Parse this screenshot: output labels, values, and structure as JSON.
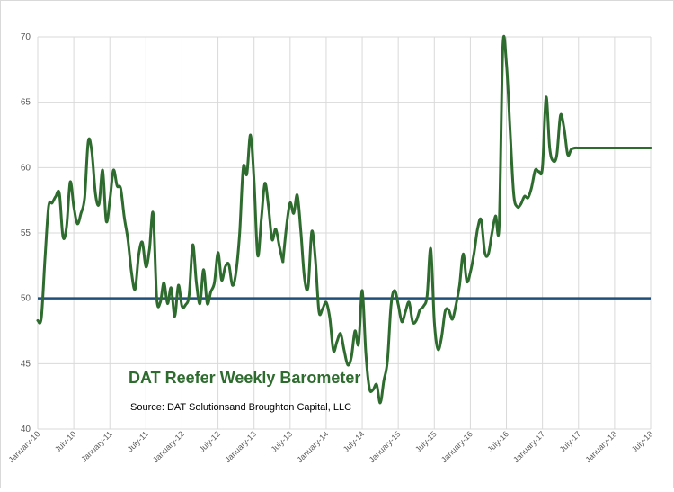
{
  "chart_data": {
    "type": "line",
    "title": "DAT Reefer Weekly Barometer",
    "subtitle": "Source: DAT Solutionsand Broughton Capital, LLC",
    "xlabel": "",
    "ylabel": "",
    "ylim": [
      40,
      70
    ],
    "yticks": [
      "40",
      "45",
      "50",
      "55",
      "60",
      "65",
      "70"
    ],
    "xticks": [
      "January-10",
      "July-10",
      "January-11",
      "July-11",
      "January-12",
      "July-12",
      "January-13",
      "July-13",
      "January-14",
      "July-14",
      "January-15",
      "July-15",
      "January-16",
      "July-16",
      "January-17",
      "July-17",
      "January-18",
      "July-18"
    ],
    "grid": true,
    "reference_line": {
      "value": 50,
      "color": "#1f4e79"
    },
    "series": [
      {
        "color": "#2e6b2e",
        "x": [
          0,
          0.25,
          0.5,
          0.75,
          1,
          1.25,
          1.5,
          1.75,
          2,
          2.25,
          2.5,
          2.75,
          3,
          3.25,
          3.5,
          3.75,
          4,
          4.25,
          4.5,
          4.75,
          5,
          5.25,
          5.5,
          5.75,
          6,
          6.25,
          6.5,
          6.75,
          7,
          7.25,
          7.5,
          7.75,
          8,
          8.25,
          8.5,
          8.75,
          9,
          9.25,
          9.5,
          9.75,
          10,
          10.25,
          10.5,
          10.75,
          11,
          11.25,
          11.5,
          11.75,
          12,
          12.25,
          12.5,
          12.75,
          13,
          13.25,
          13.5,
          13.75,
          14,
          14.25,
          14.5,
          14.75,
          15,
          15.25,
          15.5,
          15.75,
          16,
          16.25,
          16.5,
          16.75,
          17
        ],
        "values": [
          48.3,
          48.5,
          53.0,
          57.0,
          57.3,
          57.8,
          58.0,
          54.7,
          55.5,
          58.9,
          57.0,
          55.7,
          56.5,
          57.7,
          62.0,
          61.2,
          58.0,
          57.2,
          59.8,
          55.9,
          57.5,
          59.8,
          58.6,
          58.4,
          56.2,
          54.5,
          52.0,
          50.7,
          53.3,
          54.3,
          52.4,
          53.8,
          56.5,
          50.0,
          49.7,
          51.2,
          49.6,
          50.8,
          48.6,
          51.0,
          49.4,
          49.5,
          50.3,
          54.1,
          51.2,
          49.6,
          52.2,
          49.6,
          50.5,
          51.2,
          53.5,
          51.4,
          52.4,
          52.6,
          51.0,
          52.0,
          55.0,
          60.0,
          59.5,
          62.5,
          59.0,
          53.3,
          56.0,
          58.8,
          57.0,
          54.5,
          55.3,
          54.0,
          52.8
        ]
      },
      {
        "color": "#2e6b2e",
        "x": [
          17,
          17.25,
          17.5,
          17.75,
          18,
          18.25,
          18.5,
          18.75,
          19,
          19.25,
          19.5,
          19.75,
          20,
          20.25,
          20.5,
          20.75,
          21,
          21.25,
          21.5,
          21.75,
          22,
          22.25,
          22.5,
          22.75,
          23,
          23.25,
          23.5,
          23.75,
          24,
          24.25,
          24.5,
          24.75,
          25,
          25.25,
          25.5,
          25.75,
          26,
          26.25,
          26.5,
          26.75,
          27,
          27.25,
          27.5,
          27.75,
          28,
          28.25,
          28.5,
          28.75,
          29,
          29.25,
          29.5,
          29.75,
          30,
          30.25,
          30.5,
          30.75,
          31,
          31.25,
          31.5,
          31.75,
          32,
          32.25,
          32.5,
          32.75,
          33,
          33.25,
          33.5,
          33.75,
          34,
          34.25,
          34.5,
          34.75,
          35,
          35.25,
          35.5,
          35.75,
          36,
          36.25,
          36.5,
          36.75,
          37,
          37.25,
          37.5,
          37.75,
          38,
          38.25,
          38.5,
          38.75,
          39,
          39.25,
          39.5,
          39.75,
          40,
          40.25,
          40.5,
          40.75,
          41,
          41.25,
          41.5,
          41.75,
          42,
          42.25,
          42.5
        ],
        "values": [
          52.8,
          55.5,
          57.3,
          56.5,
          57.9,
          55.0,
          51.5,
          50.9,
          55.1,
          53.0,
          49.0,
          49.2,
          49.7,
          48.5,
          46.0,
          46.7,
          47.3,
          46.0,
          44.9,
          45.5,
          47.5,
          46.5,
          50.6,
          45.8,
          43.1,
          43.0,
          43.4,
          42.0,
          43.7,
          45.2,
          49.5,
          50.6,
          49.5,
          48.2,
          49.0,
          49.7,
          48.2,
          48.3,
          49.1,
          49.4,
          50.2,
          53.8,
          48.2,
          46.1,
          47.0,
          49.0,
          49.1,
          48.4,
          49.5,
          51.0,
          53.4,
          51.3,
          52.0,
          53.4,
          55.3,
          56.0,
          53.5,
          53.4,
          55.0,
          56.3,
          55.6,
          69.2,
          68.0,
          63.0,
          58.0,
          57.0,
          57.2,
          57.8,
          57.7,
          58.5,
          59.8,
          59.7,
          60.0,
          65.4,
          61.5,
          60.5,
          61.0,
          64.0,
          63.0,
          61.0,
          61.4,
          61.5,
          61.5,
          61.5,
          61.5,
          61.5,
          61.5,
          61.5,
          61.5,
          61.5,
          61.5,
          61.5,
          61.5,
          61.5,
          61.5,
          61.5,
          61.5,
          61.5,
          61.5,
          61.5,
          61.5,
          61.5,
          61.5
        ]
      }
    ]
  }
}
